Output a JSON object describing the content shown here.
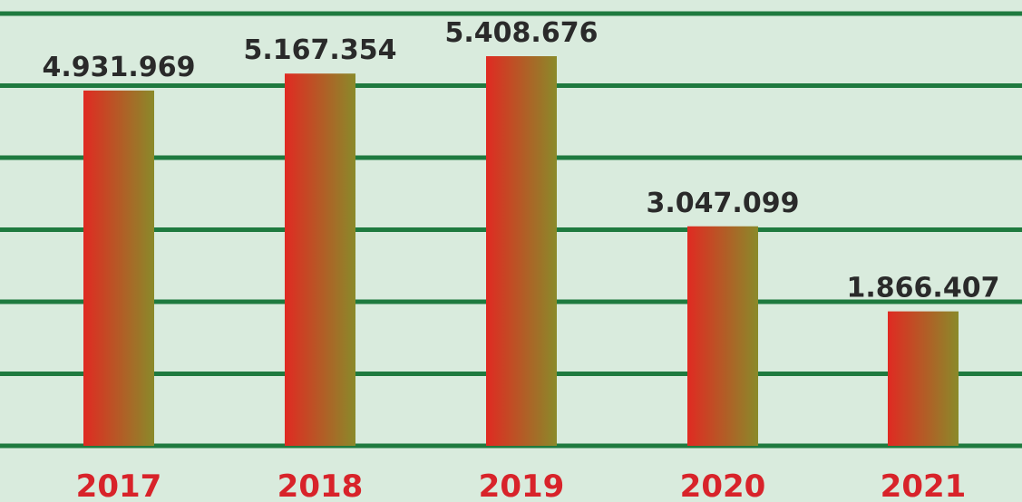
{
  "chart_data": {
    "type": "bar",
    "categories": [
      "2017",
      "2018",
      "2019",
      "2020",
      "2021"
    ],
    "values": [
      4931969,
      5167354,
      5408676,
      3047099,
      1866407
    ],
    "value_labels": [
      "4.931.969",
      "5.167.354",
      "5.408.676",
      "3.047.099",
      "1.866.407"
    ],
    "ylim": [
      0,
      6000000
    ],
    "grid": true,
    "colors": {
      "background": "#d9ebdd",
      "grid": "#1f7a3f",
      "bar_start": "#e02a22",
      "bar_end": "#8a8a2a",
      "category_label": "#d8232a",
      "value_label": "#2a2a2a"
    }
  }
}
